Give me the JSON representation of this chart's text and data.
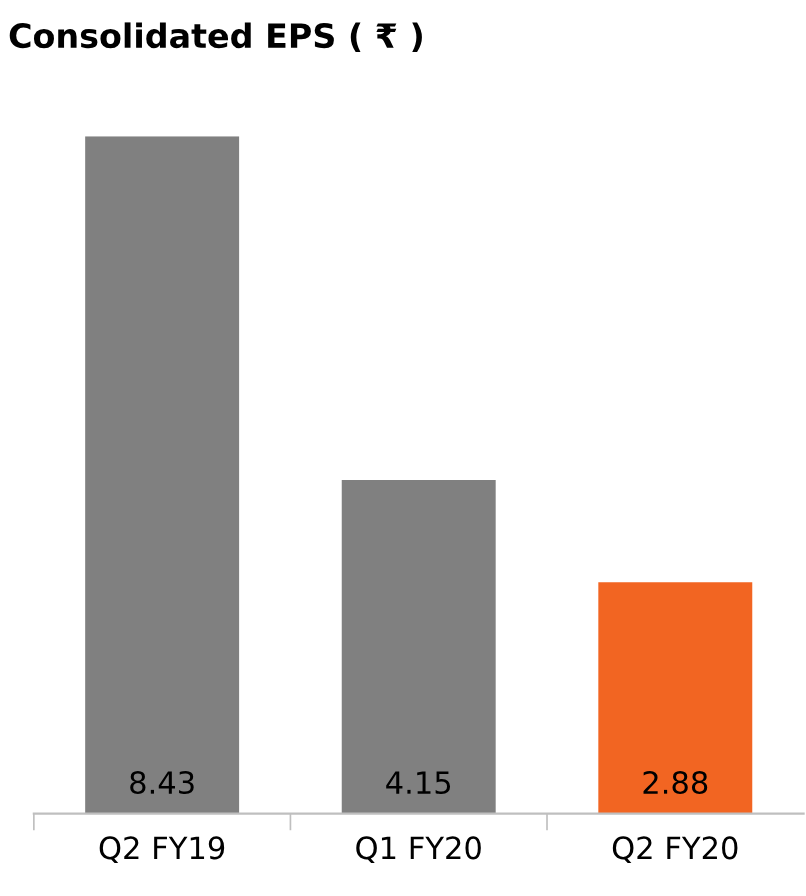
{
  "chart_data": {
    "type": "bar",
    "title": "Consolidated EPS ( ₹ )",
    "categories": [
      "Q2 FY19",
      "Q1 FY20",
      "Q2 FY20"
    ],
    "values": [
      8.43,
      4.15,
      2.88
    ],
    "colors": [
      "#808080",
      "#808080",
      "#f26522"
    ],
    "tick_labels": "x",
    "data_labels": true,
    "grid": false,
    "legend": false
  }
}
